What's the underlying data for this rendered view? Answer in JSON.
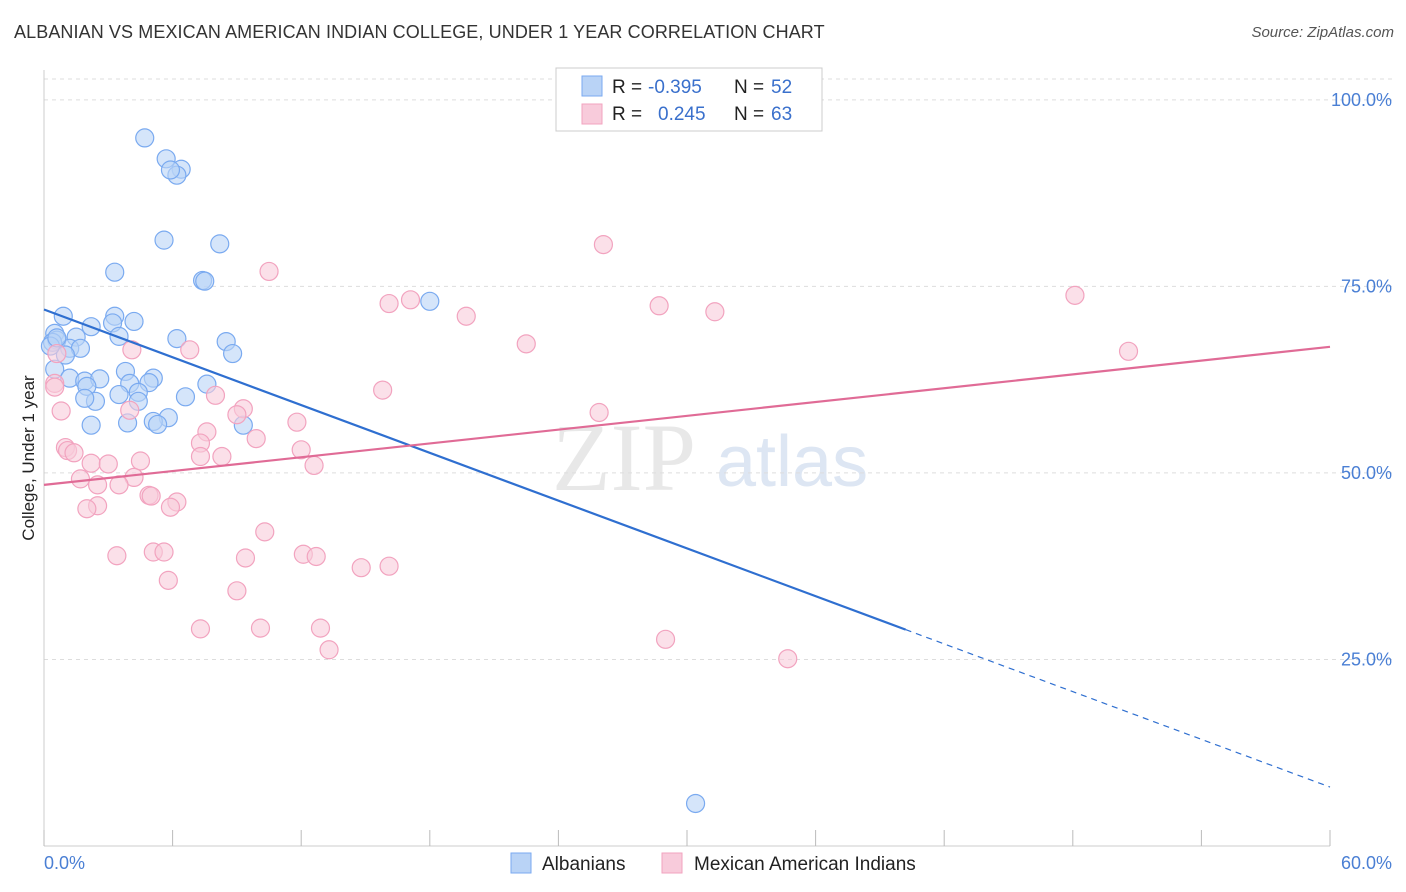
{
  "chart_data": {
    "type": "scatter",
    "title": "ALBANIAN VS MEXICAN AMERICAN INDIAN COLLEGE, UNDER 1 YEAR CORRELATION CHART",
    "source": "Source: ZipAtlas.com",
    "xlabel": "",
    "ylabel": "College, Under 1 year",
    "xlim": [
      0,
      60
    ],
    "ylim": [
      0,
      104
    ],
    "x_tick_labels": [
      "0.0%",
      "60.0%"
    ],
    "y_ticks": [
      25,
      50,
      75,
      100
    ],
    "y_tick_labels": [
      "25.0%",
      "50.0%",
      "75.0%",
      "100.0%"
    ],
    "grid": true,
    "legend_position": "bottom",
    "watermark": {
      "zip": "ZIP",
      "atlas": "atlas"
    },
    "stats_box": [
      {
        "r_label": "R =",
        "r_value": "-0.395",
        "n_label": "N =",
        "n_value": "52"
      },
      {
        "r_label": "R =",
        "r_value": "0.245",
        "n_label": "N =",
        "n_value": "63"
      }
    ],
    "series": [
      {
        "name": "Albanians",
        "color": "#7aaaf0",
        "fill": "#b9d3f6",
        "line_color": "#2f6fd0",
        "trend": {
          "x0": 0,
          "y0": 71.9,
          "x1": 40.2,
          "y1": 29.0,
          "dash_to_x": 60,
          "dash_to_y": 7.9
        },
        "points": [
          [
            4.7,
            94.9
          ],
          [
            5.7,
            92.1
          ],
          [
            6.4,
            90.7
          ],
          [
            6.2,
            89.9
          ],
          [
            5.9,
            90.6
          ],
          [
            5.6,
            81.2
          ],
          [
            8.2,
            80.7
          ],
          [
            3.3,
            76.9
          ],
          [
            7.4,
            75.8
          ],
          [
            7.5,
            75.7
          ],
          [
            18.0,
            73.0
          ],
          [
            0.9,
            71.0
          ],
          [
            3.3,
            71.0
          ],
          [
            4.2,
            70.3
          ],
          [
            3.2,
            70.1
          ],
          [
            2.2,
            69.6
          ],
          [
            0.5,
            68.7
          ],
          [
            1.5,
            68.2
          ],
          [
            0.6,
            67.8
          ],
          [
            3.5,
            68.3
          ],
          [
            6.2,
            68.0
          ],
          [
            8.5,
            67.6
          ],
          [
            1.2,
            66.7
          ],
          [
            1.7,
            66.7
          ],
          [
            1.0,
            65.8
          ],
          [
            8.8,
            66.0
          ],
          [
            0.4,
            67.5
          ],
          [
            0.5,
            63.9
          ],
          [
            3.8,
            63.6
          ],
          [
            1.2,
            62.7
          ],
          [
            1.9,
            62.3
          ],
          [
            2.6,
            62.6
          ],
          [
            5.1,
            62.7
          ],
          [
            4.0,
            62.0
          ],
          [
            4.9,
            62.1
          ],
          [
            2.0,
            61.6
          ],
          [
            7.6,
            61.9
          ],
          [
            3.5,
            60.5
          ],
          [
            4.4,
            60.8
          ],
          [
            6.6,
            60.2
          ],
          [
            2.4,
            59.6
          ],
          [
            4.4,
            59.6
          ],
          [
            1.9,
            60.0
          ],
          [
            5.8,
            57.4
          ],
          [
            5.1,
            56.9
          ],
          [
            5.3,
            56.5
          ],
          [
            2.2,
            56.4
          ],
          [
            3.9,
            56.7
          ],
          [
            9.3,
            56.4
          ],
          [
            0.3,
            67.0
          ],
          [
            0.6,
            68.1
          ],
          [
            30.4,
            5.7
          ]
        ]
      },
      {
        "name": "Mexican American Indians",
        "color": "#f2a3bf",
        "fill": "#f8cbdb",
        "line_color": "#e06b96",
        "trend": {
          "x0": 0,
          "y0": 48.4,
          "x1": 60,
          "y1": 66.9
        },
        "points": [
          [
            26.1,
            80.6
          ],
          [
            10.5,
            77.0
          ],
          [
            48.1,
            73.8
          ],
          [
            16.1,
            72.7
          ],
          [
            17.1,
            73.2
          ],
          [
            28.7,
            72.4
          ],
          [
            31.3,
            71.6
          ],
          [
            19.7,
            71.0
          ],
          [
            22.5,
            67.3
          ],
          [
            50.6,
            66.3
          ],
          [
            4.1,
            66.5
          ],
          [
            6.8,
            66.5
          ],
          [
            0.6,
            66.0
          ],
          [
            0.5,
            62.0
          ],
          [
            15.8,
            61.1
          ],
          [
            8.0,
            60.4
          ],
          [
            0.8,
            58.3
          ],
          [
            4.0,
            58.4
          ],
          [
            9.3,
            58.6
          ],
          [
            9.0,
            57.8
          ],
          [
            25.9,
            58.1
          ],
          [
            11.8,
            56.8
          ],
          [
            7.6,
            55.5
          ],
          [
            9.9,
            54.6
          ],
          [
            7.3,
            54.0
          ],
          [
            1.0,
            53.4
          ],
          [
            1.1,
            53.0
          ],
          [
            1.4,
            52.7
          ],
          [
            12.0,
            53.1
          ],
          [
            7.3,
            52.2
          ],
          [
            8.3,
            52.2
          ],
          [
            4.5,
            51.6
          ],
          [
            2.2,
            51.3
          ],
          [
            3.0,
            51.2
          ],
          [
            12.6,
            51.0
          ],
          [
            1.7,
            49.2
          ],
          [
            4.2,
            49.4
          ],
          [
            3.5,
            48.4
          ],
          [
            2.5,
            48.4
          ],
          [
            4.9,
            47.0
          ],
          [
            5.0,
            46.9
          ],
          [
            6.2,
            46.1
          ],
          [
            2.5,
            45.6
          ],
          [
            5.9,
            45.4
          ],
          [
            2.0,
            45.2
          ],
          [
            10.3,
            42.1
          ],
          [
            3.4,
            38.9
          ],
          [
            5.1,
            39.4
          ],
          [
            5.6,
            39.4
          ],
          [
            12.1,
            39.1
          ],
          [
            9.4,
            38.6
          ],
          [
            12.7,
            38.8
          ],
          [
            14.8,
            37.3
          ],
          [
            16.1,
            37.5
          ],
          [
            5.8,
            35.6
          ],
          [
            9.0,
            34.2
          ],
          [
            7.3,
            29.1
          ],
          [
            10.1,
            29.2
          ],
          [
            12.9,
            29.2
          ],
          [
            13.3,
            26.3
          ],
          [
            29.0,
            27.7
          ],
          [
            34.7,
            25.1
          ],
          [
            0.5,
            61.5
          ]
        ]
      }
    ]
  }
}
